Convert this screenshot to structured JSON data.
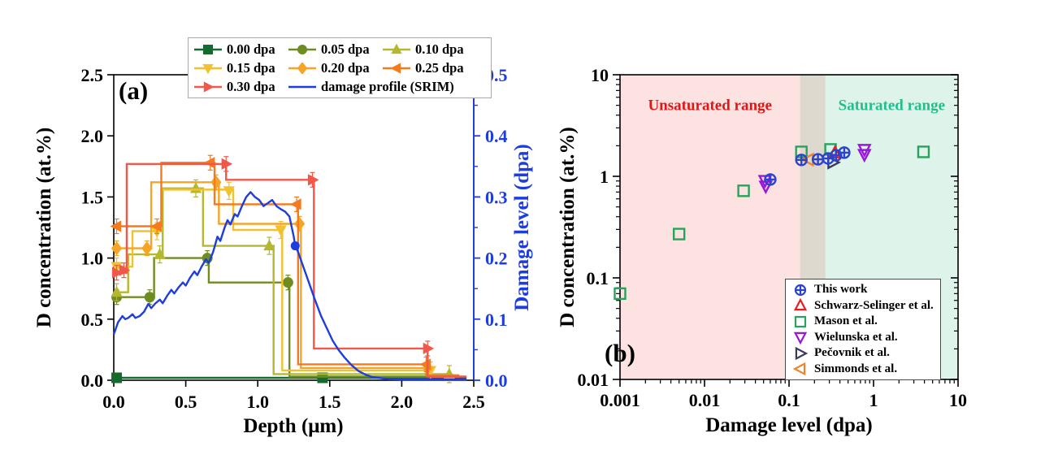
{
  "figure": {
    "background": "#ffffff"
  },
  "chart_data": [
    {
      "id": "panel-a",
      "type": "line",
      "panel_label": "(a)",
      "xlabel": "Depth (μm)",
      "ylabel_left": "D concentration (at.%)",
      "ylabel_right": "Damage level (dpa)",
      "xlim": [
        0,
        2.5
      ],
      "ylim_left": [
        0,
        2.5
      ],
      "ylim_right": [
        0,
        0.5
      ],
      "x_ticks": [
        0,
        0.5,
        1.0,
        1.5,
        2.0,
        2.5
      ],
      "x_tick_labels": [
        "0.0",
        "0.5",
        "1.0",
        "1.5",
        "2.0",
        "2.5"
      ],
      "y_left_ticks": [
        0,
        0.5,
        1.0,
        1.5,
        2.0,
        2.5
      ],
      "y_left_tick_labels": [
        "0.0",
        "0.5",
        "1.0",
        "1.5",
        "2.0",
        "2.5"
      ],
      "y_right_ticks": [
        0,
        0.1,
        0.2,
        0.3,
        0.4,
        0.5
      ],
      "y_right_tick_labels": [
        "0.0",
        "0.1",
        "0.2",
        "0.3",
        "0.4",
        "0.5"
      ],
      "right_axis_color": "#1d3de0",
      "series": [
        {
          "name": "0.00 dpa",
          "marker": "square",
          "color": "#156b2f",
          "yerr": 0,
          "path": [
            [
              0,
              0.02
            ],
            [
              2.45,
              0.02
            ]
          ],
          "markers": [
            [
              0.02,
              0.02
            ],
            [
              1.45,
              0.02
            ]
          ]
        },
        {
          "name": "0.05 dpa",
          "marker": "circle",
          "color": "#6f8c21",
          "yerr": 0.06,
          "path": [
            [
              0,
              0.68
            ],
            [
              0.28,
              0.68
            ],
            [
              0.28,
              1.0
            ],
            [
              0.66,
              1.0
            ],
            [
              0.66,
              0.8
            ],
            [
              1.22,
              0.8
            ],
            [
              1.22,
              0.03
            ],
            [
              2.3,
              0.03
            ]
          ],
          "markers": [
            [
              0.02,
              0.68
            ],
            [
              0.25,
              0.68
            ],
            [
              0.65,
              1.0
            ],
            [
              1.21,
              0.8
            ]
          ]
        },
        {
          "name": "0.10 dpa",
          "marker": "triangle-up",
          "color": "#b3b82e",
          "yerr": 0.07,
          "path": [
            [
              0,
              0.72
            ],
            [
              0.1,
              0.72
            ],
            [
              0.1,
              1.03
            ],
            [
              0.34,
              1.03
            ],
            [
              0.34,
              1.57
            ],
            [
              0.62,
              1.57
            ],
            [
              0.62,
              1.1
            ],
            [
              1.11,
              1.1
            ],
            [
              1.11,
              0.05
            ],
            [
              2.33,
              0.05
            ],
            [
              2.4,
              0.03
            ]
          ],
          "markers": [
            [
              0.02,
              0.72
            ],
            [
              0.32,
              1.03
            ],
            [
              0.57,
              1.57
            ],
            [
              1.08,
              1.1
            ],
            [
              2.33,
              0.05
            ]
          ]
        },
        {
          "name": "0.15 dpa",
          "marker": "triangle-down",
          "color": "#f2c12e",
          "yerr": 0.07,
          "path": [
            [
              0,
              0.93
            ],
            [
              0.13,
              0.93
            ],
            [
              0.13,
              1.22
            ],
            [
              0.33,
              1.22
            ],
            [
              0.33,
              1.56
            ],
            [
              0.83,
              1.56
            ],
            [
              0.83,
              1.23
            ],
            [
              1.17,
              1.23
            ],
            [
              1.17,
              0.08
            ],
            [
              2.2,
              0.08
            ],
            [
              2.2,
              0.03
            ],
            [
              2.4,
              0.03
            ]
          ],
          "markers": [
            [
              0.02,
              0.93
            ],
            [
              0.3,
              1.22
            ],
            [
              0.8,
              1.55
            ],
            [
              1.16,
              1.23
            ],
            [
              2.2,
              0.08
            ]
          ]
        },
        {
          "name": "0.20 dpa",
          "marker": "diamond",
          "color": "#f6a426",
          "yerr": 0.06,
          "path": [
            [
              0,
              1.08
            ],
            [
              0.26,
              1.08
            ],
            [
              0.26,
              1.62
            ],
            [
              0.73,
              1.62
            ],
            [
              0.73,
              1.28
            ],
            [
              1.3,
              1.28
            ],
            [
              1.3,
              0.1
            ],
            [
              2.18,
              0.1
            ],
            [
              2.18,
              0.04
            ],
            [
              2.4,
              0.04
            ]
          ],
          "markers": [
            [
              0.02,
              1.08
            ],
            [
              0.23,
              1.08
            ],
            [
              0.71,
              1.62
            ],
            [
              1.29,
              1.28
            ],
            [
              2.18,
              0.1
            ]
          ]
        },
        {
          "name": "0.25 dpa",
          "marker": "triangle-left",
          "color": "#f47a1f",
          "yerr": 0.06,
          "path": [
            [
              0,
              1.26
            ],
            [
              0.33,
              1.26
            ],
            [
              0.33,
              1.78
            ],
            [
              0.7,
              1.78
            ],
            [
              0.7,
              1.44
            ],
            [
              1.28,
              1.44
            ],
            [
              1.28,
              0.13
            ],
            [
              2.17,
              0.13
            ],
            [
              2.17,
              0.04
            ],
            [
              2.4,
              0.04
            ]
          ],
          "markers": [
            [
              0.02,
              1.26
            ],
            [
              0.3,
              1.26
            ],
            [
              0.67,
              1.78
            ],
            [
              1.27,
              1.44
            ],
            [
              2.17,
              0.13
            ]
          ]
        },
        {
          "name": "0.30 dpa",
          "marker": "triangle-right",
          "color": "#f2574a",
          "yerr": 0.06,
          "path": [
            [
              0,
              0.88
            ],
            [
              0.09,
              0.88
            ],
            [
              0.09,
              1.77
            ],
            [
              0.78,
              1.77
            ],
            [
              0.78,
              1.64
            ],
            [
              1.39,
              1.64
            ],
            [
              1.39,
              0.26
            ],
            [
              2.18,
              0.26
            ],
            [
              2.18,
              0.03
            ],
            [
              2.45,
              0.03
            ]
          ],
          "markers": [
            [
              0.02,
              0.88
            ],
            [
              0.07,
              0.9
            ],
            [
              0.78,
              1.77
            ],
            [
              1.38,
              1.64
            ],
            [
              2.18,
              0.26
            ]
          ]
        }
      ],
      "damage_profile": {
        "name": "damage profile (SRIM)",
        "color": "#1d3de0",
        "axis": "right",
        "marker_point": [
          1.26,
          0.22
        ],
        "points": [
          [
            0,
            0.075
          ],
          [
            0.03,
            0.095
          ],
          [
            0.06,
            0.105
          ],
          [
            0.08,
            0.1
          ],
          [
            0.1,
            0.102
          ],
          [
            0.13,
            0.108
          ],
          [
            0.15,
            0.102
          ],
          [
            0.18,
            0.105
          ],
          [
            0.21,
            0.112
          ],
          [
            0.24,
            0.125
          ],
          [
            0.26,
            0.118
          ],
          [
            0.29,
            0.126
          ],
          [
            0.32,
            0.132
          ],
          [
            0.34,
            0.126
          ],
          [
            0.37,
            0.138
          ],
          [
            0.4,
            0.148
          ],
          [
            0.42,
            0.142
          ],
          [
            0.45,
            0.152
          ],
          [
            0.48,
            0.16
          ],
          [
            0.5,
            0.155
          ],
          [
            0.53,
            0.168
          ],
          [
            0.56,
            0.178
          ],
          [
            0.58,
            0.172
          ],
          [
            0.61,
            0.186
          ],
          [
            0.64,
            0.198
          ],
          [
            0.66,
            0.192
          ],
          [
            0.69,
            0.21
          ],
          [
            0.72,
            0.235
          ],
          [
            0.74,
            0.228
          ],
          [
            0.77,
            0.25
          ],
          [
            0.79,
            0.262
          ],
          [
            0.81,
            0.255
          ],
          [
            0.84,
            0.272
          ],
          [
            0.86,
            0.268
          ],
          [
            0.89,
            0.285
          ],
          [
            0.92,
            0.3
          ],
          [
            0.95,
            0.308
          ],
          [
            0.98,
            0.3
          ],
          [
            1.01,
            0.295
          ],
          [
            1.04,
            0.285
          ],
          [
            1.07,
            0.29
          ],
          [
            1.1,
            0.295
          ],
          [
            1.13,
            0.285
          ],
          [
            1.16,
            0.28
          ],
          [
            1.19,
            0.276
          ],
          [
            1.22,
            0.268
          ],
          [
            1.25,
            0.235
          ],
          [
            1.26,
            0.22
          ],
          [
            1.28,
            0.21
          ],
          [
            1.31,
            0.19
          ],
          [
            1.34,
            0.17
          ],
          [
            1.37,
            0.15
          ],
          [
            1.4,
            0.13
          ],
          [
            1.44,
            0.105
          ],
          [
            1.48,
            0.085
          ],
          [
            1.52,
            0.065
          ],
          [
            1.56,
            0.05
          ],
          [
            1.6,
            0.038
          ],
          [
            1.65,
            0.025
          ],
          [
            1.7,
            0.015
          ],
          [
            1.75,
            0.009
          ],
          [
            1.8,
            0.005
          ],
          [
            1.9,
            0.002
          ],
          [
            2.0,
            0.001
          ],
          [
            2.2,
            0.001
          ],
          [
            2.45,
            0.001
          ]
        ]
      }
    },
    {
      "id": "panel-b",
      "type": "scatter",
      "panel_label": "(b)",
      "xlabel": "Damage level (dpa)",
      "ylabel": "D concentration (at.%)",
      "xscale": "log",
      "yscale": "log",
      "xlim": [
        0.001,
        10
      ],
      "ylim": [
        0.01,
        10
      ],
      "x_ticks": [
        0.001,
        0.01,
        0.1,
        1,
        10
      ],
      "x_tick_labels": [
        "0.001",
        "0.01",
        "0.1",
        "1",
        "10"
      ],
      "y_ticks": [
        0.01,
        0.1,
        1,
        10
      ],
      "y_tick_labels": [
        "0.01",
        "0.1",
        "1",
        "10"
      ],
      "regions": [
        {
          "label": "Unsaturated range",
          "label_color": "#e01717",
          "fill": "#fce3e2",
          "from": 0.001,
          "to": 0.135,
          "label_x": 0.0116,
          "label_y": 4.5
        },
        {
          "label": "",
          "label_color": "",
          "fill": "#ded9ce",
          "from": 0.135,
          "to": 0.27,
          "label_x": 0,
          "label_y": 0
        },
        {
          "label": "Saturated range",
          "label_color": "#25bd8c",
          "fill": "#def4ea",
          "from": 0.27,
          "to": 10,
          "label_x": 1.64,
          "label_y": 4.5
        }
      ],
      "series": [
        {
          "name": "This work",
          "marker": "circle-plus",
          "color": "#2b43cd",
          "open": true,
          "points": [
            [
              0.06,
              0.93
            ],
            [
              0.14,
              1.45
            ],
            [
              0.22,
              1.47
            ],
            [
              0.29,
              1.5
            ],
            [
              0.36,
              1.61
            ],
            [
              0.45,
              1.71
            ]
          ]
        },
        {
          "name": "Schwarz-Selinger et al.",
          "marker": "triangle-up",
          "color": "#e81e1e",
          "open": true,
          "points": [
            [
              0.35,
              1.7
            ]
          ]
        },
        {
          "name": "Mason et al.",
          "marker": "square",
          "color": "#27a35b",
          "open": true,
          "points": [
            [
              0.001,
              0.07
            ],
            [
              0.005,
              0.27
            ],
            [
              0.029,
              0.72
            ],
            [
              0.14,
              1.74
            ],
            [
              0.31,
              1.84
            ],
            [
              3.9,
              1.74
            ]
          ]
        },
        {
          "name": "Wielunska et al.",
          "marker": "triangle-down",
          "color": "#9a16d8",
          "open": true,
          "points": [
            [
              0.052,
              0.91
            ],
            [
              0.053,
              0.8
            ],
            [
              0.78,
              1.84
            ],
            [
              0.78,
              1.64
            ]
          ]
        },
        {
          "name": "Pečovnik et al.",
          "marker": "triangle-right",
          "color": "#3a3a5e",
          "open": true,
          "points": [
            [
              0.33,
              1.37
            ]
          ]
        },
        {
          "name": "Simmonds et al.",
          "marker": "triangle-left",
          "color": "#f0842b",
          "open": true,
          "points": [
            [
              0.17,
              1.46
            ]
          ]
        }
      ]
    }
  ]
}
